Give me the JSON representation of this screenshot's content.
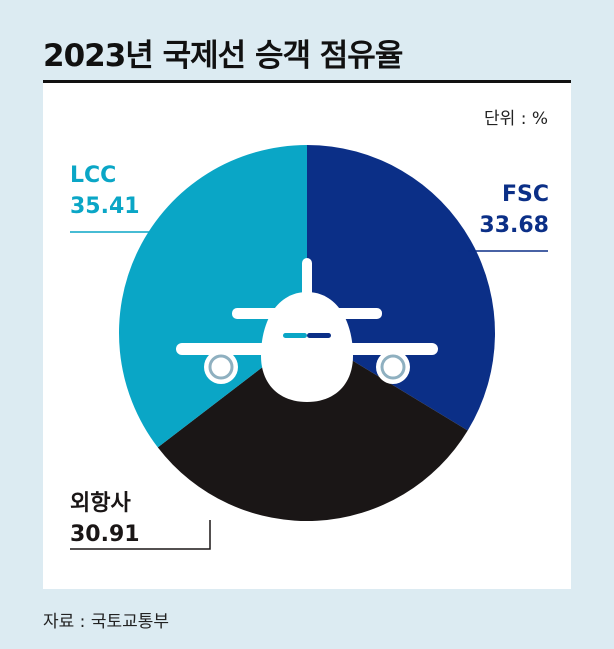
{
  "title": "2023년 국제선 승객 점유율",
  "unit_label": "단위 : %",
  "source": "자료 : 국토교통부",
  "colors": {
    "lcc": "#0aa6c6",
    "fsc": "#0b2f87",
    "other": "#1a1616",
    "background": "#dcebf2",
    "panel": "#ffffff"
  },
  "chart_data": {
    "type": "pie",
    "start_angle_deg": 0,
    "slices": [
      {
        "key": "fsc",
        "label": "FSC",
        "value": "33.68",
        "color": "#0b2f87"
      },
      {
        "key": "other",
        "label": "외항사",
        "value": "30.91",
        "color": "#1a1616"
      },
      {
        "key": "lcc",
        "label": "LCC",
        "value": "35.41",
        "color": "#0aa6c6"
      }
    ],
    "center_icon": "airplane-icon"
  }
}
